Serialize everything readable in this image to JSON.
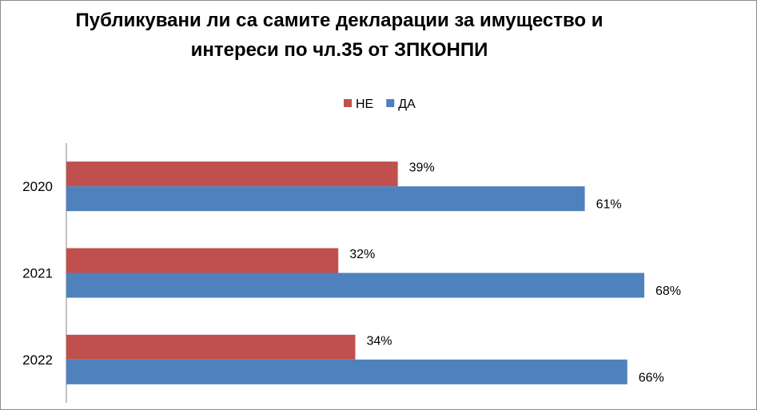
{
  "chart_data": {
    "type": "bar",
    "orientation": "horizontal",
    "title_lines": [
      "Публикувани ли са самите декларации за имущество и",
      "интереси по чл.35 от ЗПКОНПИ"
    ],
    "categories": [
      "2020",
      "2021",
      "2022"
    ],
    "series": [
      {
        "name": "НЕ",
        "values": [
          39,
          32,
          34
        ],
        "labels": [
          "39%",
          "32%",
          "34%"
        ],
        "color": "#C0504D"
      },
      {
        "name": "ДА",
        "values": [
          61,
          68,
          66
        ],
        "labels": [
          "61%",
          "68%",
          "66%"
        ],
        "color": "#4F81BD"
      }
    ],
    "legend_order": [
      "НЕ",
      "ДА"
    ],
    "legend_position": "top",
    "xlim": [
      0,
      68
    ],
    "grid": false
  }
}
